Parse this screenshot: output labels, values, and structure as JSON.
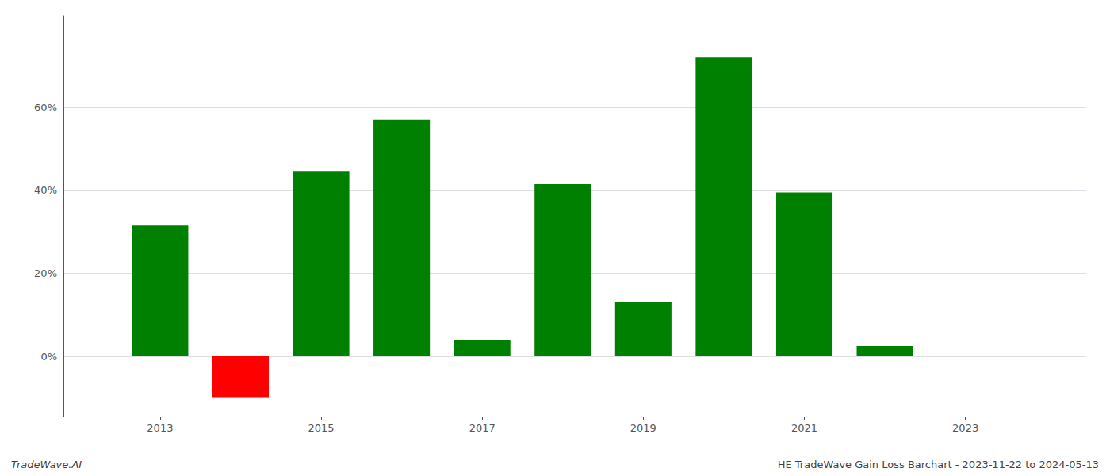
{
  "chart_data": {
    "type": "bar",
    "x": [
      2013,
      2014,
      2015,
      2016,
      2017,
      2018,
      2019,
      2020,
      2021,
      2022
    ],
    "values": [
      0.315,
      -0.1,
      0.445,
      0.57,
      0.04,
      0.415,
      0.13,
      0.72,
      0.395,
      0.025
    ],
    "colors": [
      "#008000",
      "#ff0000",
      "#008000",
      "#008000",
      "#008000",
      "#008000",
      "#008000",
      "#008000",
      "#008000",
      "#008000"
    ],
    "xlim": [
      2011.8,
      2024.5
    ],
    "xticks": [
      2013,
      2015,
      2017,
      2019,
      2021,
      2023
    ],
    "ylim": [
      -0.145,
      0.82
    ],
    "yticks": [
      {
        "value": 0.0,
        "label": "0%"
      },
      {
        "value": 0.2,
        "label": "20%"
      },
      {
        "value": 0.4,
        "label": "40%"
      },
      {
        "value": 0.6,
        "label": "60%"
      }
    ],
    "grid": true,
    "annotations": [
      "TradeWave.AI",
      "HE TradeWave Gain Loss Barchart - 2023-11-22 to 2024-05-13"
    ]
  }
}
